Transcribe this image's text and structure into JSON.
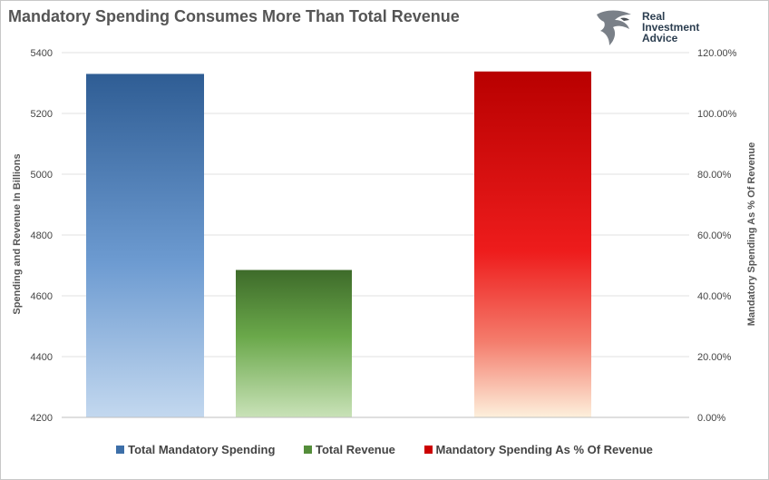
{
  "title": "Mandatory Spending Consumes More Than Total Revenue",
  "logo": {
    "name": "eagle-logo-icon",
    "line1": "Real",
    "line2": "Investment",
    "line3": "Advice"
  },
  "chart_data": {
    "type": "bar",
    "title": "Mandatory Spending Consumes More Than Total Revenue",
    "ylabel": "Spending and Revenue In Billions",
    "ylabel_right": "Mandatory Spending As % Of Revenue",
    "ylim": [
      4200,
      5400
    ],
    "y_ticks": [
      "5400",
      "5200",
      "5000",
      "4800",
      "4600",
      "4400",
      "4200"
    ],
    "ylim_right": [
      0,
      120
    ],
    "y_ticks_right": [
      "120.00%",
      "100.00%",
      "80.00%",
      "60.00%",
      "40.00%",
      "20.00%",
      "0.00%"
    ],
    "grid": true,
    "legend_position": "bottom",
    "series": [
      {
        "name": "Total Mandatory Spending",
        "value": 5330,
        "axis": "left",
        "color": "#3d6fa8"
      },
      {
        "name": "Total Revenue",
        "value": 4685,
        "axis": "left",
        "color": "#548d3a"
      },
      {
        "name": "Mandatory Spending As % Of Revenue",
        "value": 113.8,
        "axis": "right",
        "color": "#cc0000"
      }
    ]
  }
}
